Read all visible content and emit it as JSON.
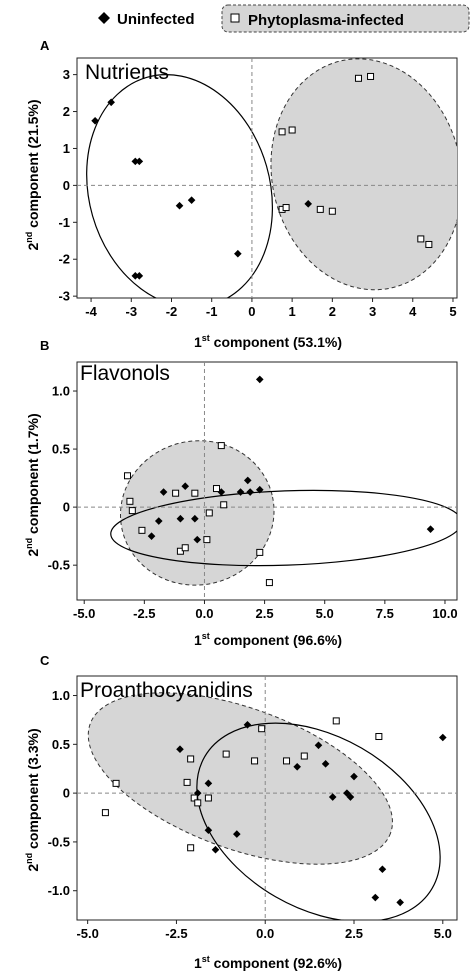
{
  "legend": {
    "uninfected": "Uninfected",
    "infected": "Phytoplasma-infected"
  },
  "chart_data": [
    {
      "type": "scatter",
      "panel": "A",
      "title": "Nutrients",
      "xlabel_pre": "1",
      "xlabel_sup": "st",
      "xlabel_post": " component  (53.1%)",
      "ylabel_pre": "2",
      "ylabel_sup": "nd",
      "ylabel_post": " component  (21.5%)",
      "xlim": [
        -4.35,
        5.1
      ],
      "ylim": [
        -3.05,
        3.45
      ],
      "xticks": [
        -4,
        -3,
        -2,
        -1,
        0,
        1,
        2,
        3,
        4,
        5
      ],
      "yticks": [
        -3,
        -2,
        -1,
        0,
        1,
        2,
        3
      ],
      "xtick_labels": [
        "-4",
        "-3",
        "-2",
        "-1",
        "0",
        "1",
        "2",
        "3",
        "4",
        "5"
      ],
      "ytick_labels": [
        "-3",
        "-2",
        "-1",
        "0",
        "1",
        "2",
        "3"
      ],
      "series": [
        {
          "name": "Uninfected",
          "x": [
            -3.5,
            -3.9,
            -2.9,
            -2.8,
            -2.9,
            -2.8,
            -1.5,
            -1.8,
            -0.35
          ],
          "y": [
            2.25,
            1.75,
            0.65,
            0.65,
            -2.45,
            -2.45,
            -0.4,
            -0.55,
            -1.85
          ]
        },
        {
          "name": "Phytoplasma-infected",
          "x": [
            2.65,
            2.95,
            0.75,
            1.0,
            0.75,
            0.85,
            1.7,
            2.0,
            4.2,
            4.4
          ],
          "y": [
            2.9,
            2.95,
            1.45,
            1.5,
            -0.65,
            -0.6,
            -0.65,
            -0.7,
            -1.45,
            -1.6
          ]
        },
        {
          "name": "Uninfected",
          "x": [
            1.4
          ],
          "y": [
            -0.5
          ]
        }
      ],
      "ellipses": [
        {
          "group": "Uninfected",
          "cx": -1.8,
          "cy": -0.15,
          "rx": 2.25,
          "ry": 3.2,
          "angle": -16
        },
        {
          "group": "Phytoplasma-infected",
          "cx": 2.85,
          "cy": 0.3,
          "rx": 2.35,
          "ry": 3.15,
          "angle": -12
        }
      ]
    },
    {
      "type": "scatter",
      "panel": "B",
      "title": "Flavonols",
      "xlabel_pre": "1",
      "xlabel_sup": "st",
      "xlabel_post": " component  (96.6%)",
      "ylabel_pre": "2",
      "ylabel_sup": "nd",
      "ylabel_post": " component  (1.7%)",
      "xlim": [
        -5.3,
        10.5
      ],
      "ylim": [
        -0.8,
        1.25
      ],
      "xticks": [
        -5,
        -2.5,
        0,
        2.5,
        5,
        7.5,
        10
      ],
      "yticks": [
        -0.5,
        0,
        0.5,
        1
      ],
      "xtick_labels": [
        "-5.0",
        "-2.5",
        "0.0",
        "2.5",
        "5.0",
        "7.5",
        "10.0"
      ],
      "ytick_labels": [
        "-0.5",
        "0",
        "0.5",
        "1.0"
      ],
      "series": [
        {
          "name": "Uninfected",
          "x": [
            2.3,
            1.8,
            -0.8,
            1.9,
            2.3,
            -1.7,
            1.5,
            0.7,
            -1.9,
            -2.2,
            -1.0,
            -0.4,
            -0.3,
            9.4
          ],
          "y": [
            1.1,
            0.23,
            0.18,
            0.13,
            0.15,
            0.13,
            0.13,
            0.13,
            -0.12,
            -0.25,
            -0.1,
            -0.1,
            -0.28,
            -0.19
          ]
        },
        {
          "name": "Phytoplasma-infected",
          "x": [
            0.7,
            -3.2,
            -3.1,
            -3.0,
            -1.2,
            0.5,
            0.8,
            -2.6,
            -1.0,
            -0.8,
            0.1,
            0.2,
            2.3,
            2.7,
            -0.4
          ],
          "y": [
            0.53,
            0.27,
            0.05,
            -0.03,
            0.12,
            0.16,
            0.02,
            -0.2,
            -0.38,
            -0.35,
            -0.28,
            -0.05,
            -0.39,
            -0.65,
            0.12
          ]
        }
      ],
      "ellipses": [
        {
          "group": "Phytoplasma-infected",
          "cx": -0.3,
          "cy": -0.05,
          "rx": 3.2,
          "ry": 0.62,
          "angle": -12
        },
        {
          "group": "Uninfected",
          "cx": 3.4,
          "cy": -0.18,
          "rx": 7.3,
          "ry": 0.32,
          "angle": -2
        }
      ]
    },
    {
      "type": "scatter",
      "panel": "C",
      "title": "Proanthocyanidins",
      "xlabel_pre": "1",
      "xlabel_sup": "st",
      "xlabel_post": " component  (92.6%)",
      "ylabel_pre": "2",
      "ylabel_sup": "nd",
      "ylabel_post": " component  (3.3%)",
      "xlim": [
        -5.3,
        5.4
      ],
      "ylim": [
        -1.3,
        1.2
      ],
      "xticks": [
        -5,
        -2.5,
        0,
        2.5,
        5
      ],
      "yticks": [
        -1,
        -0.5,
        0,
        0.5,
        1
      ],
      "xtick_labels": [
        "-5.0",
        "-2.5",
        "0.0",
        "2.5",
        "5.0"
      ],
      "ytick_labels": [
        "-1.0",
        "-0.5",
        "0",
        "0.5",
        "1.0"
      ],
      "series": [
        {
          "name": "Uninfected",
          "x": [
            -2.4,
            -1.6,
            -1.9,
            -1.6,
            -0.5,
            0.9,
            1.5,
            1.7,
            2.5,
            2.3,
            2.4,
            1.9,
            5.0,
            3.1,
            3.3,
            3.8,
            -0.8,
            -1.4
          ],
          "y": [
            0.45,
            0.1,
            0.0,
            -0.38,
            0.7,
            0.27,
            0.49,
            0.3,
            0.17,
            0.0,
            -0.04,
            -0.04,
            0.57,
            -1.07,
            -0.78,
            -1.12,
            -0.42,
            -0.58
          ]
        },
        {
          "name": "Phytoplasma-infected",
          "x": [
            -4.2,
            -4.5,
            -2.1,
            -2.2,
            -2.0,
            -1.6,
            -1.9,
            -1.1,
            -2.1,
            -0.3,
            1.1,
            2.0,
            3.2,
            0.6,
            -0.1
          ],
          "y": [
            0.1,
            -0.2,
            0.35,
            0.11,
            -0.05,
            -0.05,
            -0.1,
            0.4,
            -0.56,
            0.33,
            0.38,
            0.74,
            0.58,
            0.33,
            0.66
          ]
        }
      ],
      "ellipses": [
        {
          "group": "Phytoplasma-infected",
          "cx": -0.7,
          "cy": 0.15,
          "rx": 4.5,
          "ry": 0.72,
          "angle": 20
        },
        {
          "group": "Uninfected",
          "cx": 1.5,
          "cy": -0.3,
          "rx": 3.7,
          "ry": 0.88,
          "angle": 30
        }
      ]
    }
  ]
}
